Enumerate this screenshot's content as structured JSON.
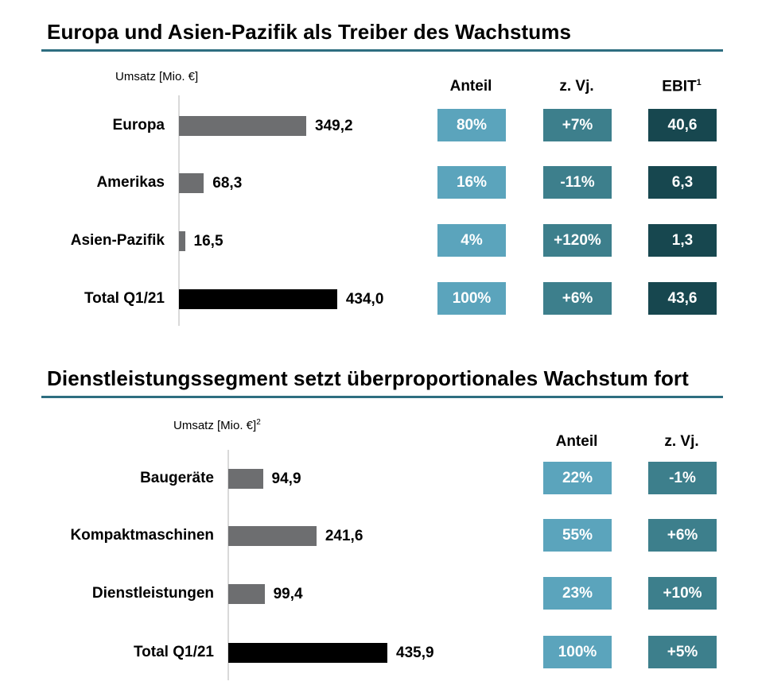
{
  "colors": {
    "rule": "#2e6e80",
    "bar": "#6d6e70",
    "bar_total": "#000000",
    "anteil": "#5ba4bc",
    "vj": "#3d7f8c",
    "ebit": "#17474f"
  },
  "chart_data": [
    {
      "type": "bar",
      "orientation": "horizontal",
      "title": "Europa und Asien-Pazifik als Treiber des Wachstums",
      "unit_label": "Umsatz [Mio. €]",
      "unit_sup": "",
      "categories": [
        "Europa",
        "Amerikas",
        "Asien-Pazifik",
        "Total Q1/21"
      ],
      "values": [
        349.2,
        68.3,
        16.5,
        434.0
      ],
      "value_labels": [
        "349,2",
        "68,3",
        "16,5",
        "434,0"
      ],
      "table_columns": [
        {
          "label": "Anteil",
          "sup": "",
          "values": [
            "80%",
            "16%",
            "4%",
            "100%"
          ]
        },
        {
          "label": "z. Vj.",
          "sup": "",
          "values": [
            "+7%",
            "-11%",
            "+120%",
            "+6%"
          ]
        },
        {
          "label": "EBIT",
          "sup": "1",
          "values": [
            "40,6",
            "6,3",
            "1,3",
            "43,6"
          ]
        }
      ]
    },
    {
      "type": "bar",
      "orientation": "horizontal",
      "title": "Dienstleistungssegment setzt überproportionales Wachstum fort",
      "unit_label": "Umsatz [Mio. €]",
      "unit_sup": "2",
      "categories": [
        "Baugeräte",
        "Kompaktmaschinen",
        "Dienstleistungen",
        "Total Q1/21"
      ],
      "values": [
        94.9,
        241.6,
        99.4,
        435.9
      ],
      "value_labels": [
        "94,9",
        "241,6",
        "99,4",
        "435,9"
      ],
      "table_columns": [
        {
          "label": "Anteil",
          "sup": "",
          "values": [
            "22%",
            "55%",
            "23%",
            "100%"
          ]
        },
        {
          "label": "z. Vj.",
          "sup": "",
          "values": [
            "-1%",
            "+6%",
            "+10%",
            "+5%"
          ]
        }
      ]
    }
  ]
}
